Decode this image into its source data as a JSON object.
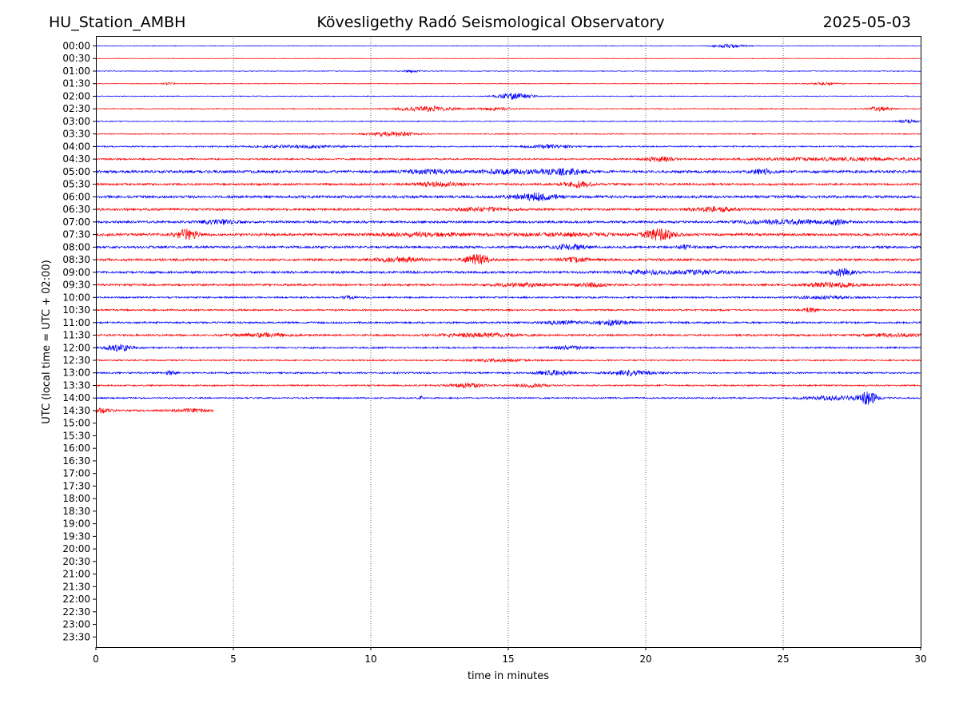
{
  "header": {
    "station": "HU_Station_AMBH",
    "observatory": "Kövesligethy Radó Seismological Observatory",
    "date": "2025-05-03"
  },
  "chart_data": {
    "type": "line",
    "title": "Kövesligethy Radó Seismological Observatory",
    "xlabel": "time in minutes",
    "ylabel": "UTC (local time = UTC + 02:00)",
    "xlim": [
      0,
      30
    ],
    "x_ticks": [
      "0",
      "5",
      "10",
      "15",
      "20",
      "25",
      "30"
    ],
    "x_gridlines": [
      5,
      10,
      15,
      20,
      25
    ],
    "grid": "vertical dotted",
    "row_labels": [
      "00:00",
      "00:30",
      "01:00",
      "01:30",
      "02:00",
      "02:30",
      "03:00",
      "03:30",
      "04:00",
      "04:30",
      "05:00",
      "05:30",
      "06:00",
      "06:30",
      "07:00",
      "07:30",
      "08:00",
      "08:30",
      "09:00",
      "09:30",
      "10:00",
      "10:30",
      "11:00",
      "11:30",
      "12:00",
      "12:30",
      "13:00",
      "13:30",
      "14:00",
      "14:30",
      "15:00",
      "15:30",
      "16:00",
      "16:30",
      "17:00",
      "17:30",
      "18:00",
      "18:30",
      "19:00",
      "19:30",
      "20:00",
      "20:30",
      "21:00",
      "21:30",
      "22:00",
      "22:30",
      "23:00",
      "23:30"
    ],
    "colors": {
      "even_rows": "#0000ff",
      "odd_rows": "#ff0000"
    },
    "traces": [
      {
        "row": "00:00",
        "end_min": 30,
        "noise": 0.4,
        "bursts": [
          [
            23,
            0.6,
            2
          ]
        ]
      },
      {
        "row": "00:30",
        "end_min": 30,
        "noise": 0.35,
        "bursts": []
      },
      {
        "row": "01:00",
        "end_min": 30,
        "noise": 0.4,
        "bursts": [
          [
            11.5,
            0.3,
            1.5
          ]
        ]
      },
      {
        "row": "01:30",
        "end_min": 30,
        "noise": 0.45,
        "bursts": [
          [
            2.7,
            0.2,
            1.5
          ],
          [
            26.5,
            0.5,
            1.5
          ]
        ]
      },
      {
        "row": "02:00",
        "end_min": 30,
        "noise": 0.5,
        "bursts": [
          [
            15.2,
            0.6,
            4
          ]
        ]
      },
      {
        "row": "02:30",
        "end_min": 30,
        "noise": 0.6,
        "bursts": [
          [
            12,
            1,
            3
          ],
          [
            14.5,
            0.6,
            2
          ],
          [
            28.5,
            0.4,
            2.5
          ]
        ]
      },
      {
        "row": "03:00",
        "end_min": 30,
        "noise": 0.55,
        "bursts": [
          [
            29.5,
            0.4,
            2
          ]
        ]
      },
      {
        "row": "03:30",
        "end_min": 30,
        "noise": 0.6,
        "bursts": [
          [
            10.8,
            0.8,
            3
          ]
        ]
      },
      {
        "row": "04:00",
        "end_min": 30,
        "noise": 0.8,
        "bursts": [
          [
            7.5,
            1.5,
            1.5
          ],
          [
            16.5,
            0.8,
            2
          ]
        ]
      },
      {
        "row": "04:30",
        "end_min": 30,
        "noise": 1.0,
        "bursts": [
          [
            20.5,
            0.5,
            3
          ],
          [
            27,
            3,
            1.5
          ]
        ]
      },
      {
        "row": "05:00",
        "end_min": 30,
        "noise": 1.6,
        "bursts": [
          [
            12.2,
            1,
            2
          ],
          [
            15,
            1,
            2.5
          ],
          [
            17,
            0.8,
            3
          ],
          [
            24.3,
            0.4,
            3
          ]
        ]
      },
      {
        "row": "05:30",
        "end_min": 30,
        "noise": 1.3,
        "bursts": [
          [
            12.5,
            0.8,
            2.5
          ],
          [
            17.5,
            0.5,
            3.5
          ]
        ]
      },
      {
        "row": "06:00",
        "end_min": 30,
        "noise": 1.6,
        "bursts": [
          [
            16,
            0.8,
            4
          ]
        ]
      },
      {
        "row": "06:30",
        "end_min": 30,
        "noise": 1.4,
        "bursts": [
          [
            14,
            1,
            2
          ],
          [
            22.5,
            0.8,
            2.5
          ]
        ]
      },
      {
        "row": "07:00",
        "end_min": 30,
        "noise": 1.4,
        "bursts": [
          [
            4.5,
            0.6,
            2.5
          ],
          [
            25,
            1.5,
            2.5
          ],
          [
            27,
            0.3,
            3
          ]
        ]
      },
      {
        "row": "07:30",
        "end_min": 30,
        "noise": 1.6,
        "bursts": [
          [
            3.3,
            0.4,
            6
          ],
          [
            12,
            1.5,
            2
          ],
          [
            17,
            2,
            1.5
          ],
          [
            20.5,
            0.5,
            7
          ]
        ]
      },
      {
        "row": "08:00",
        "end_min": 30,
        "noise": 1.4,
        "bursts": [
          [
            17.3,
            0.6,
            3
          ],
          [
            21.5,
            0.3,
            2.5
          ]
        ]
      },
      {
        "row": "08:30",
        "end_min": 30,
        "noise": 1.4,
        "bursts": [
          [
            11,
            0.8,
            2.5
          ],
          [
            13.9,
            0.4,
            7
          ],
          [
            17.5,
            0.6,
            2
          ]
        ]
      },
      {
        "row": "09:00",
        "end_min": 30,
        "noise": 1.4,
        "bursts": [
          [
            20,
            1,
            2
          ],
          [
            22,
            1,
            2
          ],
          [
            27.1,
            0.4,
            5
          ]
        ]
      },
      {
        "row": "09:30",
        "end_min": 30,
        "noise": 1.2,
        "bursts": [
          [
            15.5,
            1,
            2
          ],
          [
            18,
            0.6,
            2
          ],
          [
            26.8,
            1,
            2.5
          ]
        ]
      },
      {
        "row": "10:00",
        "end_min": 30,
        "noise": 1.0,
        "bursts": [
          [
            9.2,
            0.2,
            2
          ],
          [
            26.5,
            1,
            1.5
          ]
        ]
      },
      {
        "row": "10:30",
        "end_min": 30,
        "noise": 1.0,
        "bursts": [
          [
            26,
            0.3,
            2.5
          ]
        ]
      },
      {
        "row": "11:00",
        "end_min": 30,
        "noise": 1.1,
        "bursts": [
          [
            17,
            0.8,
            2
          ],
          [
            18.8,
            0.6,
            3
          ]
        ]
      },
      {
        "row": "11:30",
        "end_min": 30,
        "noise": 1.2,
        "bursts": [
          [
            6,
            1,
            2
          ],
          [
            14,
            1.5,
            2
          ],
          [
            29,
            1,
            1.5
          ]
        ]
      },
      {
        "row": "12:00",
        "end_min": 30,
        "noise": 1.0,
        "bursts": [
          [
            0.8,
            0.5,
            4
          ],
          [
            17.2,
            0.6,
            2
          ]
        ]
      },
      {
        "row": "12:30",
        "end_min": 30,
        "noise": 0.9,
        "bursts": [
          [
            14.5,
            1,
            1.5
          ]
        ]
      },
      {
        "row": "13:00",
        "end_min": 30,
        "noise": 1.0,
        "bursts": [
          [
            2.7,
            0.2,
            2.5
          ],
          [
            16.7,
            0.6,
            3
          ],
          [
            19.5,
            0.8,
            3
          ]
        ]
      },
      {
        "row": "13:30",
        "end_min": 30,
        "noise": 0.9,
        "bursts": [
          [
            13.5,
            0.6,
            2.5
          ],
          [
            15.8,
            0.6,
            2
          ]
        ]
      },
      {
        "row": "14:00",
        "end_min": 30,
        "noise": 0.9,
        "bursts": [
          [
            11.8,
            0.1,
            3
          ],
          [
            27,
            1.2,
            2.5
          ],
          [
            28.1,
            0.3,
            7
          ]
        ]
      },
      {
        "row": "14:30",
        "end_min": 4.3,
        "noise": 1.2,
        "bursts": [
          [
            0.2,
            0.3,
            2.5
          ],
          [
            3.5,
            0.6,
            1.5
          ]
        ]
      }
    ]
  }
}
